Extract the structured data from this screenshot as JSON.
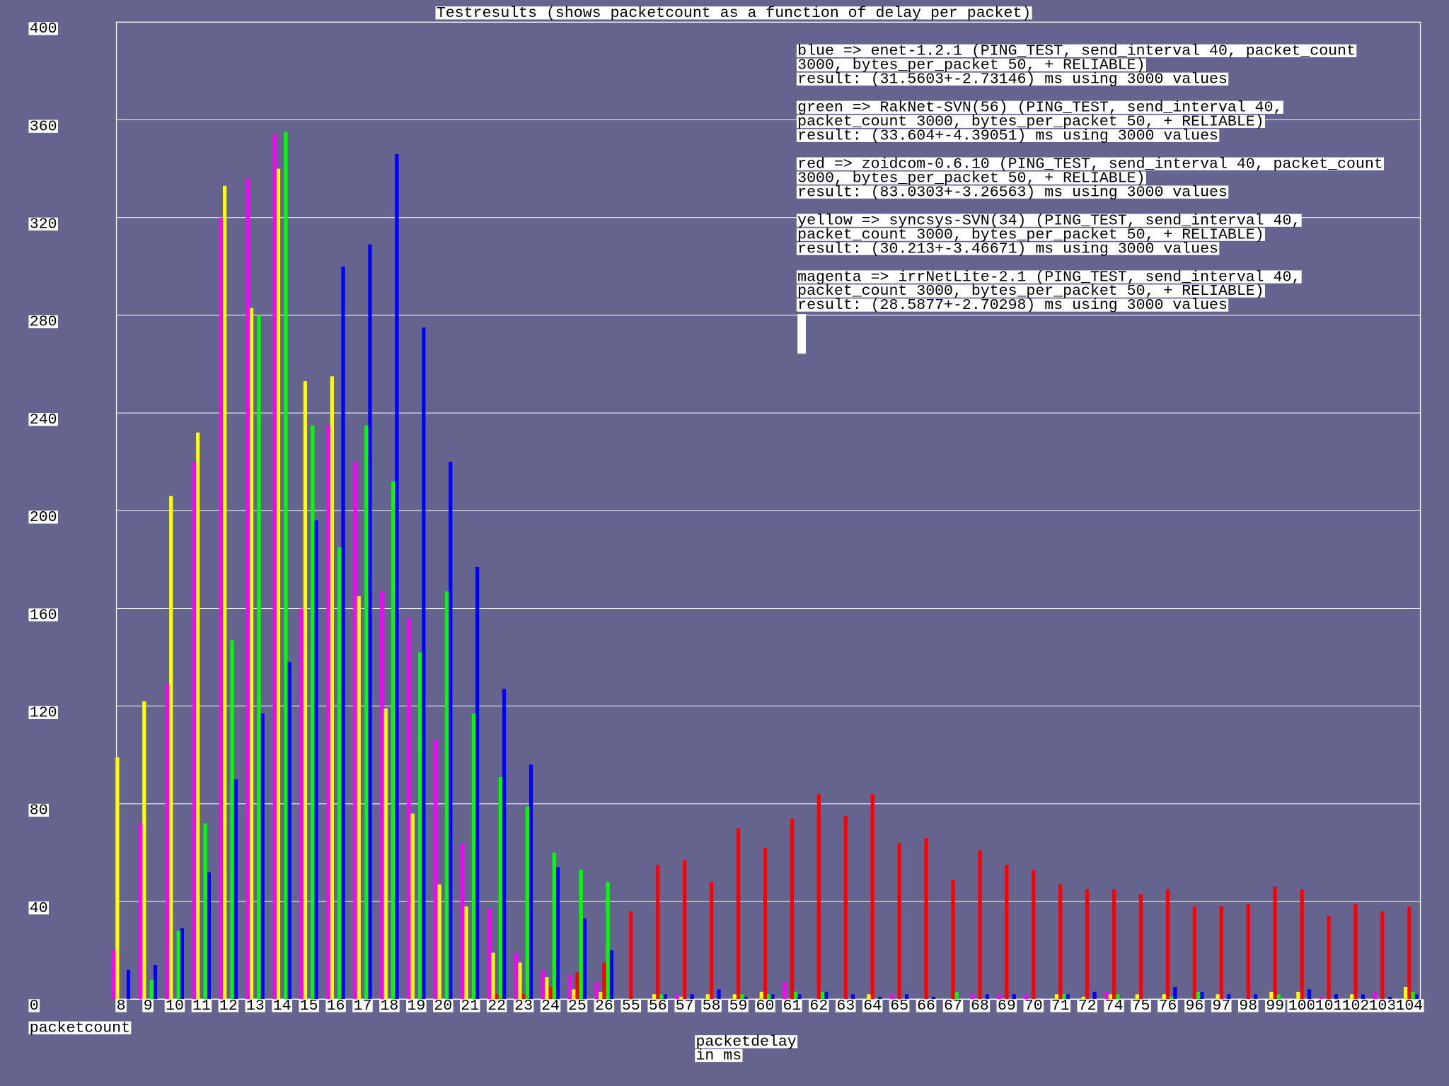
{
  "chart_data": {
    "type": "bar",
    "title": "Testresults (shows packetcount as a function of delay per packet)",
    "ylabel": "packetcount",
    "xlabel": [
      "packetdelay",
      "in ms"
    ],
    "categories": [
      "8",
      "9",
      "10",
      "11",
      "12",
      "13",
      "14",
      "15",
      "16",
      "17",
      "18",
      "19",
      "20",
      "21",
      "22",
      "23",
      "24",
      "25",
      "26",
      "55",
      "56",
      "57",
      "58",
      "59",
      "60",
      "61",
      "62",
      "63",
      "64",
      "65",
      "66",
      "67",
      "68",
      "69",
      "70",
      "71",
      "72",
      "74",
      "75",
      "76",
      "96",
      "97",
      "98",
      "99",
      "100",
      "101",
      "102",
      "103",
      "104"
    ],
    "ylim": [
      0,
      400
    ],
    "yticks": [
      0,
      40,
      80,
      120,
      160,
      200,
      240,
      280,
      320,
      360,
      400
    ],
    "grid": true,
    "series": [
      {
        "name": [
          "blue => enet-1.2.1 (PING_TEST, send_interval 40, packet_count",
          "3000, bytes_per_packet 50,  + RELIABLE)",
          "result: (31.5603+-2.73146) ms using 3000 values"
        ],
        "color": "#0000ff",
        "values": [
          12,
          14,
          29,
          52,
          90,
          117,
          138,
          196,
          300,
          309,
          346,
          275,
          220,
          177,
          127,
          96,
          54,
          33,
          20,
          0,
          2,
          2,
          4,
          1,
          2,
          2,
          3,
          2,
          1,
          2,
          1,
          0,
          2,
          2,
          0,
          2,
          3,
          0,
          0,
          5,
          3,
          2,
          2,
          0,
          4,
          2,
          2,
          1,
          2
        ]
      },
      {
        "name": [
          "green => RakNet-SVN(56) (PING_TEST, send_interval 40,",
          "packet_count 3000, bytes_per_packet 50,  + RELIABLE)",
          "result: (33.604+-4.39051) ms using 3000 values"
        ],
        "color": "#00ff00",
        "values": [
          0,
          8,
          28,
          72,
          147,
          280,
          355,
          235,
          185,
          235,
          212,
          142,
          167,
          117,
          91,
          79,
          60,
          53,
          48,
          0,
          2,
          0,
          0,
          2,
          2,
          3,
          3,
          0,
          0,
          0,
          0,
          3,
          0,
          0,
          0,
          2,
          0,
          2,
          0,
          1,
          3,
          0,
          0,
          2,
          0,
          0,
          0,
          0,
          3
        ]
      },
      {
        "name": [
          "red => zoidcom-0.6.10 (PING_TEST, send_interval 40, packet_count",
          "3000, bytes_per_packet 50,  + RELIABLE)",
          "result: (83.0303+-3.26563) ms using 3000 values"
        ],
        "color": "#ff0000",
        "values": [
          0,
          0,
          0,
          0,
          0,
          0,
          0,
          0,
          0,
          0,
          0,
          0,
          0,
          0,
          2,
          2,
          5,
          11,
          15,
          36,
          55,
          57,
          48,
          70,
          62,
          74,
          84,
          75,
          84,
          64,
          66,
          49,
          61,
          55,
          53,
          47,
          45,
          45,
          43,
          45,
          38,
          38,
          39,
          46,
          45,
          34,
          39,
          36,
          38
        ]
      },
      {
        "name": [
          "yellow => syncsys-SVN(34) (PING_TEST, send_interval 40,",
          "packet_count 3000, bytes_per_packet 50,  + RELIABLE)",
          "result: (30.213+-3.46671) ms using 3000 values"
        ],
        "color": "#ffff00",
        "values": [
          99,
          122,
          206,
          232,
          333,
          283,
          340,
          253,
          255,
          165,
          119,
          76,
          47,
          38,
          19,
          15,
          9,
          4,
          3,
          0,
          2,
          1,
          2,
          2,
          3,
          0,
          0,
          0,
          2,
          0,
          0,
          0,
          0,
          0,
          0,
          2,
          1,
          2,
          2,
          2,
          0,
          2,
          0,
          3,
          3,
          0,
          2,
          0,
          5
        ]
      },
      {
        "name": [
          "magenta => irrNetLite-2.1 (PING_TEST, send_interval 40,",
          "packet_count 3000, bytes_per_packet 50,  + RELIABLE)",
          "result: (28.5877+-2.70298) ms using 3000 values"
        ],
        "color": "#ff00ff",
        "values": [
          20,
          72,
          129,
          220,
          320,
          336,
          354,
          160,
          235,
          220,
          167,
          156,
          106,
          64,
          37,
          19,
          12,
          10,
          7,
          0,
          0,
          2,
          0,
          0,
          0,
          7,
          0,
          0,
          0,
          2,
          0,
          0,
          2,
          2,
          2,
          0,
          0,
          3,
          0,
          0,
          0,
          0,
          0,
          0,
          0,
          1,
          0,
          3,
          0
        ]
      }
    ]
  }
}
